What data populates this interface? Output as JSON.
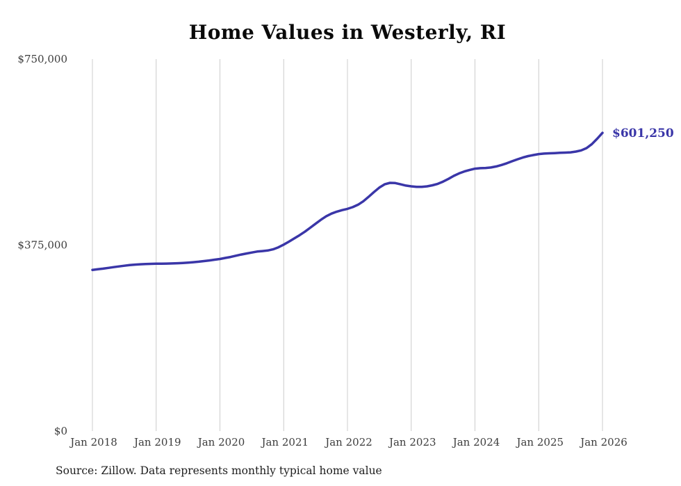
{
  "chart": {
    "title": "Home Values in Westerly, RI",
    "source_note": "Source: Zillow. Data represents monthly typical home value",
    "end_label": "$601,250",
    "line_color": "#3a36a8",
    "grid_color": "#cccccc",
    "text_color": "#3c3c3c"
  },
  "chart_data": {
    "type": "line",
    "title": "Home Values in Westerly, RI",
    "xlabel": "",
    "ylabel": "",
    "ylim": [
      0,
      750000
    ],
    "grid": "vertical-only",
    "legend": "none",
    "x_tick_labels": [
      "Jan 2018",
      "Jan 2019",
      "Jan 2020",
      "Jan 2021",
      "Jan 2022",
      "Jan 2023",
      "Jan 2024",
      "Jan 2025",
      "Jan 2026"
    ],
    "y_ticks": [
      {
        "label": "$0",
        "value": 0
      },
      {
        "label": "$375,000",
        "value": 375000
      },
      {
        "label": "$750,000",
        "value": 750000
      }
    ],
    "annotation": {
      "text": "$601,250",
      "at": "last-point"
    },
    "source": "Source: Zillow. Data represents monthly typical home value",
    "series": [
      {
        "name": "Monthly typical home value",
        "x_start": "2018-01",
        "x_interval": "month",
        "final_value": 601250,
        "values": [
          325000,
          326200,
          327500,
          329000,
          330500,
          332000,
          333400,
          334600,
          335600,
          336300,
          336800,
          337200,
          337500,
          337600,
          337700,
          338000,
          338400,
          339000,
          339700,
          340500,
          341500,
          342700,
          344000,
          345500,
          347000,
          349000,
          351000,
          353500,
          356000,
          358000,
          360000,
          362000,
          363000,
          364000,
          366500,
          370500,
          376000,
          382000,
          388500,
          395000,
          402000,
          410000,
          418000,
          426000,
          433000,
          438500,
          442500,
          445500,
          448000,
          451500,
          456500,
          463500,
          472500,
          482000,
          491000,
          497500,
          500500,
          500000,
          497500,
          495000,
          493500,
          492500,
          492500,
          493500,
          495500,
          498500,
          503000,
          508500,
          514500,
          519500,
          523500,
          526500,
          529000,
          530000,
          530500,
          531500,
          533500,
          536500,
          540000,
          544000,
          548000,
          551500,
          554500,
          556500,
          558500,
          559500,
          560000,
          560500,
          561000,
          561500,
          562000,
          563500,
          566000,
          570500,
          578500,
          589500,
          601250
        ]
      }
    ]
  }
}
